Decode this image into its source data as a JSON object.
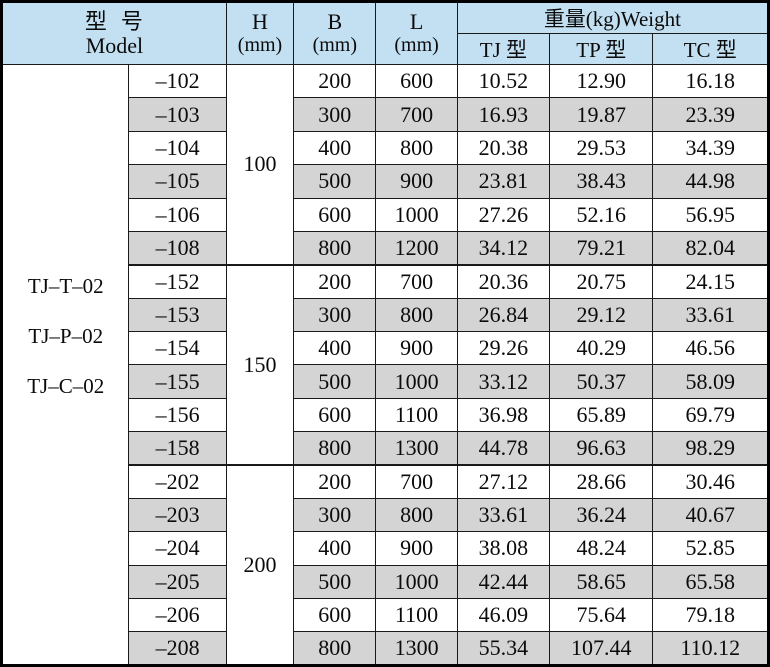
{
  "table": {
    "header": {
      "model_label": "型  号",
      "model_sub": "Model",
      "h_label": "H",
      "h_unit": "(mm)",
      "b_label": "B",
      "b_unit": "(mm)",
      "l_label": "L",
      "l_unit": "(mm)",
      "weight_label": "重量(kg)Weight",
      "weight_cols": [
        "TJ 型",
        "TP 型",
        "TC 型"
      ]
    },
    "model_series": [
      "TJ–T–02",
      "TJ–P–02",
      "TJ–C–02"
    ],
    "groups": [
      {
        "h": "100",
        "rows": [
          {
            "suffix": "–102",
            "b": "200",
            "l": "600",
            "tj": "10.52",
            "tp": "12.90",
            "tc": "16.18",
            "shaded": false
          },
          {
            "suffix": "–103",
            "b": "300",
            "l": "700",
            "tj": "16.93",
            "tp": "19.87",
            "tc": "23.39",
            "shaded": true
          },
          {
            "suffix": "–104",
            "b": "400",
            "l": "800",
            "tj": "20.38",
            "tp": "29.53",
            "tc": "34.39",
            "shaded": false
          },
          {
            "suffix": "–105",
            "b": "500",
            "l": "900",
            "tj": "23.81",
            "tp": "38.43",
            "tc": "44.98",
            "shaded": true
          },
          {
            "suffix": "–106",
            "b": "600",
            "l": "1000",
            "tj": "27.26",
            "tp": "52.16",
            "tc": "56.95",
            "shaded": false
          },
          {
            "suffix": "–108",
            "b": "800",
            "l": "1200",
            "tj": "34.12",
            "tp": "79.21",
            "tc": "82.04",
            "shaded": true
          }
        ]
      },
      {
        "h": "150",
        "rows": [
          {
            "suffix": "–152",
            "b": "200",
            "l": "700",
            "tj": "20.36",
            "tp": "20.75",
            "tc": "24.15",
            "shaded": false
          },
          {
            "suffix": "–153",
            "b": "300",
            "l": "800",
            "tj": "26.84",
            "tp": "29.12",
            "tc": "33.61",
            "shaded": true
          },
          {
            "suffix": "–154",
            "b": "400",
            "l": "900",
            "tj": "29.26",
            "tp": "40.29",
            "tc": "46.56",
            "shaded": false
          },
          {
            "suffix": "–155",
            "b": "500",
            "l": "1000",
            "tj": "33.12",
            "tp": "50.37",
            "tc": "58.09",
            "shaded": true
          },
          {
            "suffix": "–156",
            "b": "600",
            "l": "1100",
            "tj": "36.98",
            "tp": "65.89",
            "tc": "69.79",
            "shaded": false
          },
          {
            "suffix": "–158",
            "b": "800",
            "l": "1300",
            "tj": "44.78",
            "tp": "96.63",
            "tc": "98.29",
            "shaded": true
          }
        ]
      },
      {
        "h": "200",
        "rows": [
          {
            "suffix": "–202",
            "b": "200",
            "l": "700",
            "tj": "27.12",
            "tp": "28.66",
            "tc": "30.46",
            "shaded": false
          },
          {
            "suffix": "–203",
            "b": "300",
            "l": "800",
            "tj": "33.61",
            "tp": "36.24",
            "tc": "40.67",
            "shaded": true
          },
          {
            "suffix": "–204",
            "b": "400",
            "l": "900",
            "tj": "38.08",
            "tp": "48.24",
            "tc": "52.85",
            "shaded": false
          },
          {
            "suffix": "–205",
            "b": "500",
            "l": "1000",
            "tj": "42.44",
            "tp": "58.65",
            "tc": "65.58",
            "shaded": true
          },
          {
            "suffix": "–206",
            "b": "600",
            "l": "1100",
            "tj": "46.09",
            "tp": "75.64",
            "tc": "79.18",
            "shaded": false
          },
          {
            "suffix": "–208",
            "b": "800",
            "l": "1300",
            "tj": "55.34",
            "tp": "107.44",
            "tc": "110.12",
            "shaded": true
          }
        ]
      }
    ]
  },
  "colors": {
    "header_bg": "#c2e0f2",
    "row_shaded": "#d4d4d4",
    "border": "#1a1a1a",
    "text": "#0b0b0b"
  }
}
